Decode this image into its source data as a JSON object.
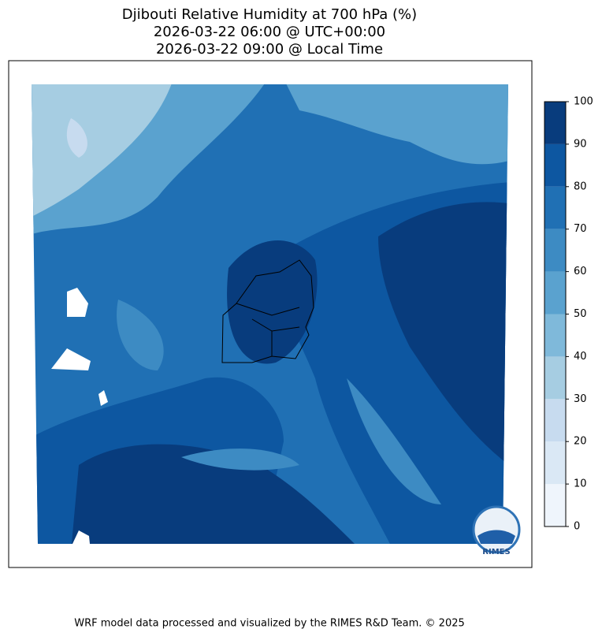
{
  "title": [
    "Djibouti Relative Humidity at 700 hPa (%)",
    "2026-03-22 06:00 @ UTC+00:00",
    "2026-03-22 09:00 @ Local Time"
  ],
  "colorbar": {
    "ticks": [
      0,
      10,
      20,
      30,
      40,
      50,
      60,
      70,
      80,
      90,
      100
    ],
    "colors": [
      "#eff5fc",
      "#dae8f5",
      "#c7dbef",
      "#a6cde2",
      "#7fb9da",
      "#5aa2cf",
      "#3d8bc3",
      "#2070b4",
      "#0d57a1",
      "#083c7d"
    ]
  },
  "logo": "RIMES",
  "footer": "WRF model data processed and visualized by the RIMES R&D Team. © 2025"
}
